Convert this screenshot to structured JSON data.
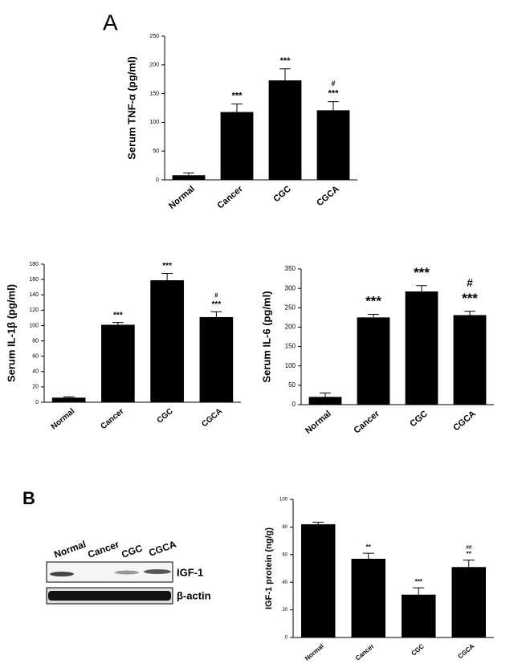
{
  "panel_labels": [
    "A",
    "B"
  ],
  "blot": {
    "lanes": [
      "Normal",
      "Cancer",
      "CGC",
      "CGCA"
    ],
    "bands": [
      "IGF-1",
      "β-actin"
    ]
  },
  "chart_data": [
    {
      "type": "bar",
      "y_label": "Serum TNF-α (pg/ml)",
      "categories": [
        "Normal",
        "Cancer",
        "CGC",
        "CGCA"
      ],
      "values": [
        8,
        118,
        173,
        121
      ],
      "errors": [
        4,
        14,
        20,
        15
      ],
      "color": "#000000",
      "significance": [
        null,
        "***",
        "***",
        "***"
      ],
      "hash_marks": [
        null,
        null,
        null,
        "#"
      ],
      "ylim": [
        0,
        250
      ],
      "yticks": [
        0,
        50,
        100,
        150,
        200,
        250
      ]
    },
    {
      "type": "bar",
      "y_label": "Serum IL-1β (pg/ml)",
      "categories": [
        "Normal",
        "Cancer",
        "CGC",
        "CGCA"
      ],
      "values": [
        6,
        101,
        159,
        111
      ],
      "errors": [
        1,
        3,
        9,
        7
      ],
      "color": "#000000",
      "significance": [
        null,
        "***",
        "***",
        "***"
      ],
      "hash_marks": [
        null,
        null,
        null,
        "#"
      ],
      "ylim": [
        0,
        180
      ],
      "yticks": [
        0,
        20,
        40,
        60,
        80,
        100,
        120,
        140,
        160,
        180
      ]
    },
    {
      "type": "bar",
      "y_label": "Serum IL-6 (pg/ml)",
      "categories": [
        "Normal",
        "Cancer",
        "CGC",
        "CGCA"
      ],
      "values": [
        20,
        225,
        292,
        231
      ],
      "errors": [
        10,
        8,
        15,
        10
      ],
      "color": "#000000",
      "significance": [
        null,
        "***",
        "***",
        "***"
      ],
      "hash_marks": [
        null,
        null,
        null,
        "#"
      ],
      "ylim": [
        0,
        350
      ],
      "yticks": [
        0,
        50,
        100,
        150,
        200,
        250,
        300,
        350
      ]
    },
    {
      "type": "bar",
      "y_label": "IGF-1 protein (ng/g)",
      "categories": [
        "Normal",
        "Cancer",
        "CGC",
        "CGCA"
      ],
      "values": [
        82,
        57,
        31,
        51
      ],
      "errors": [
        1.5,
        4,
        5,
        5
      ],
      "color": "#000000",
      "significance": [
        null,
        "**",
        "***",
        "**"
      ],
      "hash_marks": [
        null,
        null,
        null,
        "##"
      ],
      "ylim": [
        0,
        100
      ],
      "yticks": [
        0,
        20,
        40,
        60,
        80,
        100
      ]
    }
  ]
}
